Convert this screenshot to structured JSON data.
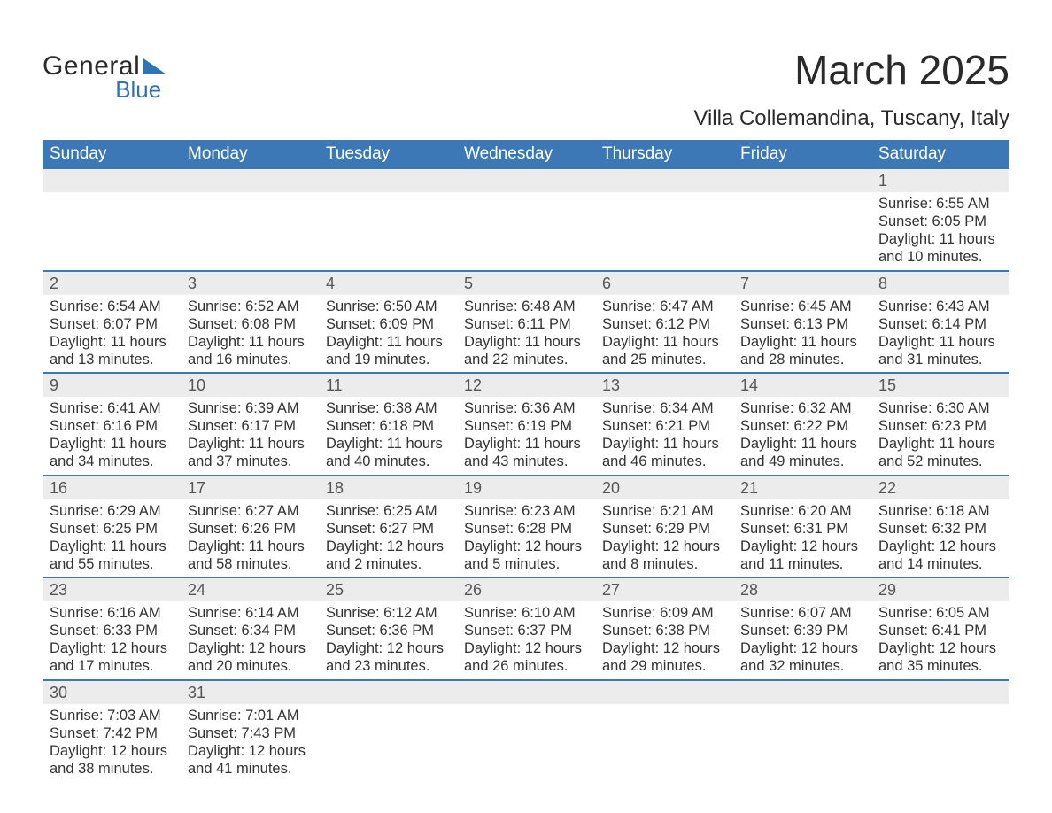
{
  "logo": {
    "word1": "General",
    "word2": "Blue"
  },
  "title": "March 2025",
  "location": "Villa Collemandina, Tuscany, Italy",
  "colors": {
    "header_bg": "#3b78b5",
    "header_text": "#ffffff",
    "daynum_bg": "#ececec",
    "body_text": "#333333",
    "divider": "#3b78b5",
    "page_bg": "#ffffff",
    "logo_accent": "#2f75b5"
  },
  "font": {
    "family": "Arial",
    "weekday_size_pt": 14,
    "body_size_pt": 12,
    "title_size_pt": 34
  },
  "labels": {
    "sunrise": "Sunrise:",
    "sunset": "Sunset:",
    "daylight": "Daylight:"
  },
  "weekdays": [
    "Sunday",
    "Monday",
    "Tuesday",
    "Wednesday",
    "Thursday",
    "Friday",
    "Saturday"
  ],
  "weeks": [
    [
      null,
      null,
      null,
      null,
      null,
      null,
      {
        "n": "1",
        "sr": "6:55 AM",
        "ss": "6:05 PM",
        "dl": "11 hours and 10 minutes."
      }
    ],
    [
      {
        "n": "2",
        "sr": "6:54 AM",
        "ss": "6:07 PM",
        "dl": "11 hours and 13 minutes."
      },
      {
        "n": "3",
        "sr": "6:52 AM",
        "ss": "6:08 PM",
        "dl": "11 hours and 16 minutes."
      },
      {
        "n": "4",
        "sr": "6:50 AM",
        "ss": "6:09 PM",
        "dl": "11 hours and 19 minutes."
      },
      {
        "n": "5",
        "sr": "6:48 AM",
        "ss": "6:11 PM",
        "dl": "11 hours and 22 minutes."
      },
      {
        "n": "6",
        "sr": "6:47 AM",
        "ss": "6:12 PM",
        "dl": "11 hours and 25 minutes."
      },
      {
        "n": "7",
        "sr": "6:45 AM",
        "ss": "6:13 PM",
        "dl": "11 hours and 28 minutes."
      },
      {
        "n": "8",
        "sr": "6:43 AM",
        "ss": "6:14 PM",
        "dl": "11 hours and 31 minutes."
      }
    ],
    [
      {
        "n": "9",
        "sr": "6:41 AM",
        "ss": "6:16 PM",
        "dl": "11 hours and 34 minutes."
      },
      {
        "n": "10",
        "sr": "6:39 AM",
        "ss": "6:17 PM",
        "dl": "11 hours and 37 minutes."
      },
      {
        "n": "11",
        "sr": "6:38 AM",
        "ss": "6:18 PM",
        "dl": "11 hours and 40 minutes."
      },
      {
        "n": "12",
        "sr": "6:36 AM",
        "ss": "6:19 PM",
        "dl": "11 hours and 43 minutes."
      },
      {
        "n": "13",
        "sr": "6:34 AM",
        "ss": "6:21 PM",
        "dl": "11 hours and 46 minutes."
      },
      {
        "n": "14",
        "sr": "6:32 AM",
        "ss": "6:22 PM",
        "dl": "11 hours and 49 minutes."
      },
      {
        "n": "15",
        "sr": "6:30 AM",
        "ss": "6:23 PM",
        "dl": "11 hours and 52 minutes."
      }
    ],
    [
      {
        "n": "16",
        "sr": "6:29 AM",
        "ss": "6:25 PM",
        "dl": "11 hours and 55 minutes."
      },
      {
        "n": "17",
        "sr": "6:27 AM",
        "ss": "6:26 PM",
        "dl": "11 hours and 58 minutes."
      },
      {
        "n": "18",
        "sr": "6:25 AM",
        "ss": "6:27 PM",
        "dl": "12 hours and 2 minutes."
      },
      {
        "n": "19",
        "sr": "6:23 AM",
        "ss": "6:28 PM",
        "dl": "12 hours and 5 minutes."
      },
      {
        "n": "20",
        "sr": "6:21 AM",
        "ss": "6:29 PM",
        "dl": "12 hours and 8 minutes."
      },
      {
        "n": "21",
        "sr": "6:20 AM",
        "ss": "6:31 PM",
        "dl": "12 hours and 11 minutes."
      },
      {
        "n": "22",
        "sr": "6:18 AM",
        "ss": "6:32 PM",
        "dl": "12 hours and 14 minutes."
      }
    ],
    [
      {
        "n": "23",
        "sr": "6:16 AM",
        "ss": "6:33 PM",
        "dl": "12 hours and 17 minutes."
      },
      {
        "n": "24",
        "sr": "6:14 AM",
        "ss": "6:34 PM",
        "dl": "12 hours and 20 minutes."
      },
      {
        "n": "25",
        "sr": "6:12 AM",
        "ss": "6:36 PM",
        "dl": "12 hours and 23 minutes."
      },
      {
        "n": "26",
        "sr": "6:10 AM",
        "ss": "6:37 PM",
        "dl": "12 hours and 26 minutes."
      },
      {
        "n": "27",
        "sr": "6:09 AM",
        "ss": "6:38 PM",
        "dl": "12 hours and 29 minutes."
      },
      {
        "n": "28",
        "sr": "6:07 AM",
        "ss": "6:39 PM",
        "dl": "12 hours and 32 minutes."
      },
      {
        "n": "29",
        "sr": "6:05 AM",
        "ss": "6:41 PM",
        "dl": "12 hours and 35 minutes."
      }
    ],
    [
      {
        "n": "30",
        "sr": "7:03 AM",
        "ss": "7:42 PM",
        "dl": "12 hours and 38 minutes."
      },
      {
        "n": "31",
        "sr": "7:01 AM",
        "ss": "7:43 PM",
        "dl": "12 hours and 41 minutes."
      },
      null,
      null,
      null,
      null,
      null
    ]
  ]
}
